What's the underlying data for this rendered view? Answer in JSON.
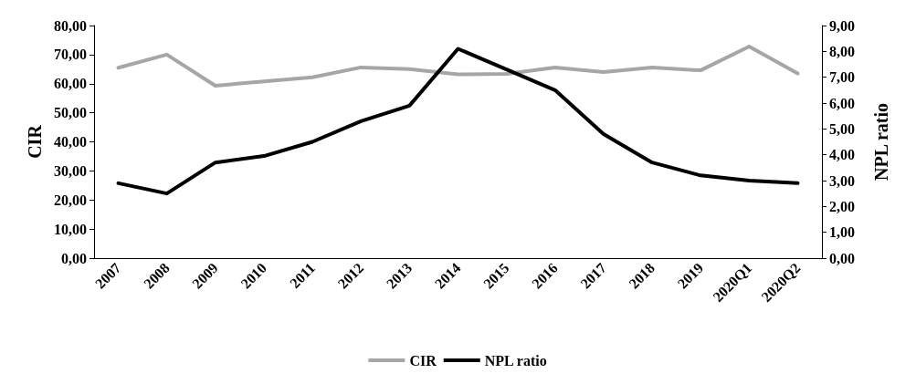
{
  "chart_data": {
    "type": "line",
    "ylabel": "CIR",
    "y2label": "NPL ratio",
    "categories": [
      "2007",
      "2008",
      "2009",
      "2010",
      "2011",
      "2012",
      "2013",
      "2014",
      "2015",
      "2016",
      "2017",
      "2018",
      "2019",
      "2020Q1",
      "2020Q2"
    ],
    "series": [
      {
        "name": "CIR",
        "color": "#a6a6a6",
        "values": [
          65.5,
          70,
          59.3,
          60.8,
          62.2,
          65.6,
          65,
          63.2,
          63.4,
          65.6,
          64,
          65.6,
          64.6,
          72.8,
          63.5
        ]
      },
      {
        "name": "NPL ratio",
        "color": "#000000",
        "axis": "y2",
        "values": [
          2.9,
          2.5,
          3.7,
          3.95,
          4.5,
          5.3,
          5.9,
          8.1,
          7.3,
          6.5,
          4.8,
          3.7,
          3.2,
          3.0,
          2.9
        ]
      }
    ],
    "ylim": [
      0,
      80
    ],
    "yticks": [
      {
        "value": 0,
        "label": "0,00"
      },
      {
        "value": 10,
        "label": "10,00"
      },
      {
        "value": 20,
        "label": "20,00"
      },
      {
        "value": 30,
        "label": "30,00"
      },
      {
        "value": 40,
        "label": "40,00"
      },
      {
        "value": 50,
        "label": "50,00"
      },
      {
        "value": 60,
        "label": "60,00"
      },
      {
        "value": 70,
        "label": "70,00"
      },
      {
        "value": 80,
        "label": "80,00"
      }
    ],
    "y2lim": [
      0,
      9
    ],
    "y2ticks": [
      {
        "value": 0,
        "label": "0,00"
      },
      {
        "value": 1,
        "label": "1,00"
      },
      {
        "value": 2,
        "label": "2,00"
      },
      {
        "value": 3,
        "label": "3,00"
      },
      {
        "value": 4,
        "label": "4,00"
      },
      {
        "value": 5,
        "label": "5,00"
      },
      {
        "value": 6,
        "label": "6,00"
      },
      {
        "value": 7,
        "label": "7,00"
      },
      {
        "value": 8,
        "label": "8,00"
      },
      {
        "value": 9,
        "label": "9,00"
      }
    ],
    "grid": false,
    "legend": "bottom",
    "marker": "none",
    "line_style": "solid"
  }
}
